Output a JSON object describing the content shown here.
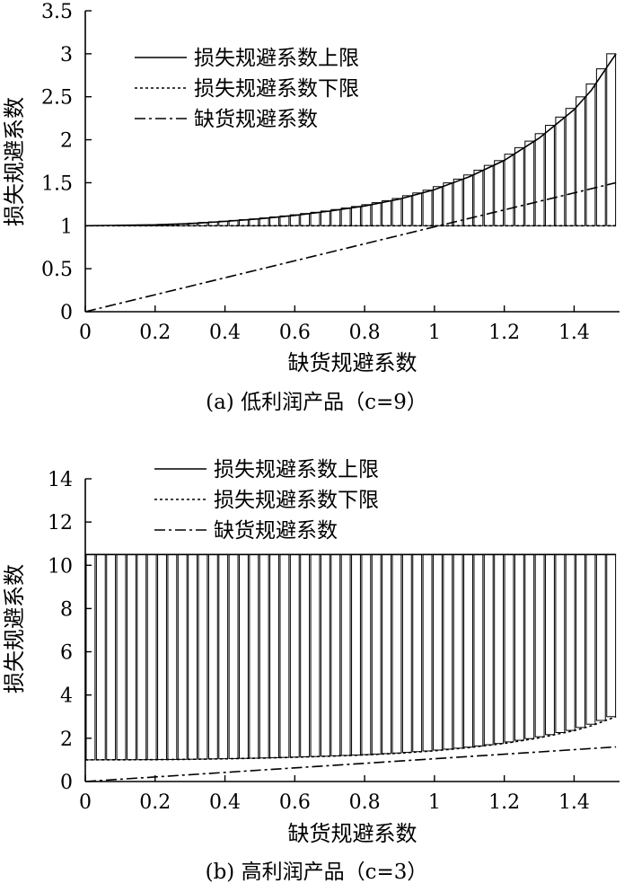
{
  "chart_data": [
    {
      "id": "a",
      "type": "line",
      "caption": "(a) 低利润产品（c=9）",
      "xlabel": "缺货规避系数",
      "ylabel": "损失规避系数",
      "xlim": [
        0,
        1.53
      ],
      "ylim": [
        0,
        3.5
      ],
      "xticks": [
        0,
        0.2,
        0.4,
        0.6,
        0.8,
        1,
        1.2,
        1.4
      ],
      "xtick_labels": [
        "0",
        "0.2",
        "0.4",
        "0.6",
        "0.8",
        "1",
        "1.2",
        "1.4"
      ],
      "yticks": [
        0,
        0.5,
        1,
        1.5,
        2,
        2.5,
        3,
        3.5
      ],
      "ytick_labels": [
        "0",
        "0.5",
        "1",
        "1.5",
        "2",
        "2.5",
        "3",
        "3.5"
      ],
      "legend_position": "top-center",
      "series": [
        {
          "name": "损失规避系数上限",
          "style": "solid",
          "x": [
            0,
            0.1,
            0.2,
            0.3,
            0.4,
            0.5,
            0.6,
            0.7,
            0.8,
            0.9,
            1.0,
            1.1,
            1.2,
            1.3,
            1.4,
            1.45,
            1.5,
            1.52
          ],
          "y": [
            1.0,
            1.005,
            1.01,
            1.025,
            1.05,
            1.08,
            1.12,
            1.17,
            1.23,
            1.31,
            1.42,
            1.57,
            1.76,
            2.02,
            2.35,
            2.58,
            2.88,
            3.0
          ]
        },
        {
          "name": "损失规避系数下限",
          "style": "dashed",
          "x": [
            0,
            0.5,
            1.0,
            1.52
          ],
          "y": [
            1.0,
            1.0,
            1.0,
            1.0
          ]
        },
        {
          "name": "缺货规避系数",
          "style": "dashdot",
          "x": [
            0,
            1.52
          ],
          "y": [
            0,
            1.5
          ]
        }
      ],
      "shaded_region": {
        "lower": "损失规避系数下限",
        "upper": "损失规避系数上限",
        "pattern": "vertical-bars"
      }
    },
    {
      "id": "b",
      "type": "line",
      "caption": "(b) 高利润产品（c=3）",
      "xlabel": "缺货规避系数",
      "ylabel": "损失规避系数",
      "xlim": [
        0,
        1.53
      ],
      "ylim": [
        0,
        14
      ],
      "xticks": [
        0,
        0.2,
        0.4,
        0.6,
        0.8,
        1,
        1.2,
        1.4
      ],
      "xtick_labels": [
        "0",
        "0.2",
        "0.4",
        "0.6",
        "0.8",
        "1",
        "1.2",
        "1.4"
      ],
      "yticks": [
        0,
        2,
        4,
        6,
        8,
        10,
        12,
        14
      ],
      "ytick_labels": [
        "0",
        "2",
        "4",
        "6",
        "8",
        "10",
        "12",
        "14"
      ],
      "legend_position": "top-center",
      "series": [
        {
          "name": "损失规避系数上限",
          "style": "solid",
          "x": [
            0,
            0.5,
            1.0,
            1.52
          ],
          "y": [
            10.5,
            10.5,
            10.5,
            10.5
          ]
        },
        {
          "name": "损失规避系数下限",
          "style": "dashed",
          "x": [
            0,
            0.1,
            0.2,
            0.3,
            0.4,
            0.5,
            0.6,
            0.7,
            0.8,
            0.9,
            1.0,
            1.1,
            1.2,
            1.3,
            1.4,
            1.45,
            1.5,
            1.52
          ],
          "y": [
            1.0,
            1.005,
            1.01,
            1.025,
            1.05,
            1.08,
            1.12,
            1.17,
            1.23,
            1.31,
            1.42,
            1.57,
            1.76,
            2.02,
            2.35,
            2.58,
            2.88,
            3.0
          ]
        },
        {
          "name": "缺货规避系数",
          "style": "dashdot",
          "x": [
            0,
            1.52
          ],
          "y": [
            0,
            1.6
          ]
        }
      ],
      "shaded_region": {
        "lower": "损失规避系数下限",
        "upper": "损失规避系数上限",
        "pattern": "vertical-bars"
      }
    }
  ]
}
